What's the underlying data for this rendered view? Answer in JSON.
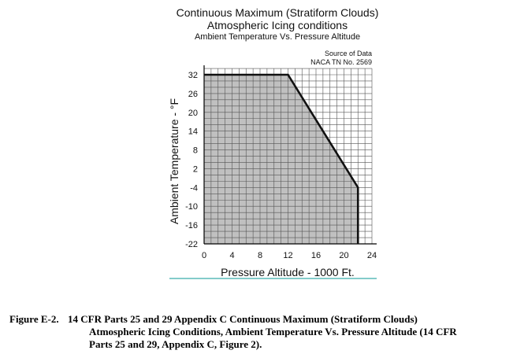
{
  "chart_data": {
    "type": "area",
    "title": "Continuous Maximum (Stratiform Clouds)",
    "subtitle": "Atmospheric Icing conditions",
    "subtitle2": "Ambient Temperature Vs. Pressure Altitude",
    "source_line1": "Source of Data",
    "source_line2": "NACA TN No. 2569",
    "xlabel": "Pressure Altitude - 1000 Ft.",
    "ylabel": "Ambient Temperature - °F",
    "xlim": [
      0,
      24
    ],
    "ylim": [
      -22,
      34
    ],
    "xticks": [
      0,
      4,
      8,
      12,
      16,
      20,
      24
    ],
    "yticks": [
      32,
      26,
      20,
      14,
      8,
      2,
      -4,
      -10,
      -16,
      -22
    ],
    "grid": true,
    "grid_x_step": 1,
    "grid_y_step": 2,
    "fill_color": "#c0c0c0",
    "boundary": {
      "x": [
        0,
        12,
        22,
        22
      ],
      "y": [
        32,
        32,
        -4,
        -22
      ]
    }
  },
  "caption": {
    "label": "Figure E-2.",
    "text_line1": "14 CFR Parts 25 and 29 Appendix C Continuous Maximum (Stratiform Clouds)",
    "text_line2": "Atmospheric Icing Conditions, Ambient Temperature Vs. Pressure Altitude (14 CFR",
    "text_line3": "Parts 25 and 29, Appendix C, Figure 2)."
  }
}
